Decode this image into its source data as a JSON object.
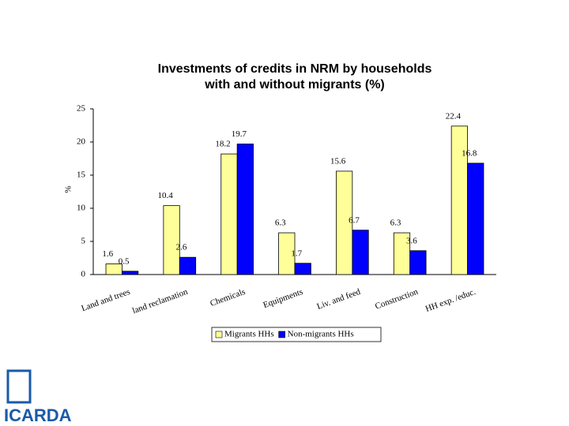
{
  "chart_data": {
    "type": "bar",
    "title": [
      "Investments of credits in NRM by households",
      "with and without migrants (%)"
    ],
    "y_label": "%",
    "categories": [
      "Land and trees",
      "land reclamation",
      "Chemicals",
      "Equipments",
      "Liv. and feed",
      "Construction",
      "HH exp. /educ."
    ],
    "series": [
      {
        "name": "Migrants HHs",
        "color": "#ffff99",
        "values": [
          1.6,
          10.4,
          18.2,
          6.3,
          15.6,
          6.3,
          22.4
        ]
      },
      {
        "name": "Non-migrants HHs",
        "color": "#0000ff",
        "values": [
          0.5,
          2.6,
          19.7,
          1.7,
          6.7,
          3.6,
          16.8
        ]
      }
    ],
    "ylim": [
      0,
      25
    ],
    "yticks": [
      0,
      5,
      10,
      15,
      20,
      25
    ],
    "grid": false,
    "legend": "bottom"
  },
  "logo_text": "ICARDA"
}
